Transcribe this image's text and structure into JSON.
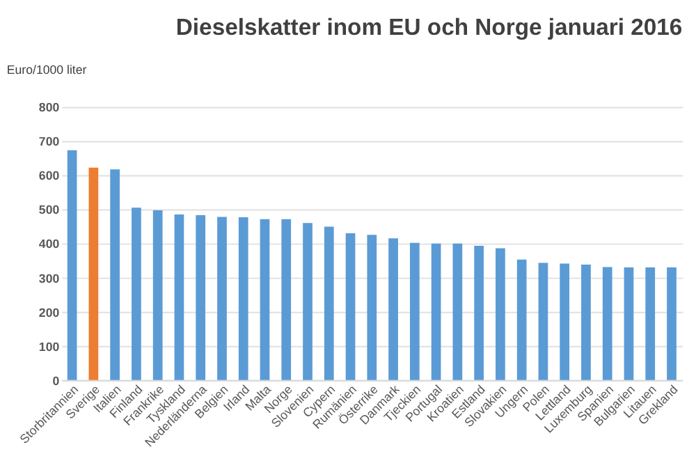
{
  "chart_data": {
    "type": "bar",
    "title": "Dieselskatter inom EU och Norge januari 2016",
    "ylabel": "Euro/1000 liter",
    "categories": [
      "Storbritannien",
      "Sverige",
      "Italien",
      "Finland",
      "Frankrike",
      "Tyskland",
      "Nederländerna",
      "Belgien",
      "Irland",
      "Malta",
      "Norge",
      "Slovenien",
      "Cypern",
      "Rumänien",
      "Österrike",
      "Danmark",
      "Tjeckien",
      "Portugal",
      "Kroatien",
      "Estland",
      "Slovakien",
      "Ungern",
      "Polen",
      "Lettland",
      "Luxemburg",
      "Spanien",
      "Bulgarien",
      "Litauen",
      "Grekland"
    ],
    "values": [
      673,
      622,
      617,
      505,
      497,
      485,
      483,
      478,
      477,
      471,
      471,
      460,
      449,
      430,
      425,
      415,
      402,
      400,
      400,
      393,
      386,
      353,
      343,
      341,
      338,
      331,
      330,
      330,
      330
    ],
    "colors": [
      "#5b9bd5",
      "#ed7d31",
      "#5b9bd5",
      "#5b9bd5",
      "#5b9bd5",
      "#5b9bd5",
      "#5b9bd5",
      "#5b9bd5",
      "#5b9bd5",
      "#5b9bd5",
      "#5b9bd5",
      "#5b9bd5",
      "#5b9bd5",
      "#5b9bd5",
      "#5b9bd5",
      "#5b9bd5",
      "#5b9bd5",
      "#5b9bd5",
      "#5b9bd5",
      "#5b9bd5",
      "#5b9bd5",
      "#5b9bd5",
      "#5b9bd5",
      "#5b9bd5",
      "#5b9bd5",
      "#5b9bd5",
      "#5b9bd5",
      "#5b9bd5",
      "#5b9bd5"
    ],
    "ylim": [
      0,
      800
    ],
    "yticks": [
      0,
      100,
      200,
      300,
      400,
      500,
      600,
      700,
      800
    ],
    "grid": "y"
  }
}
